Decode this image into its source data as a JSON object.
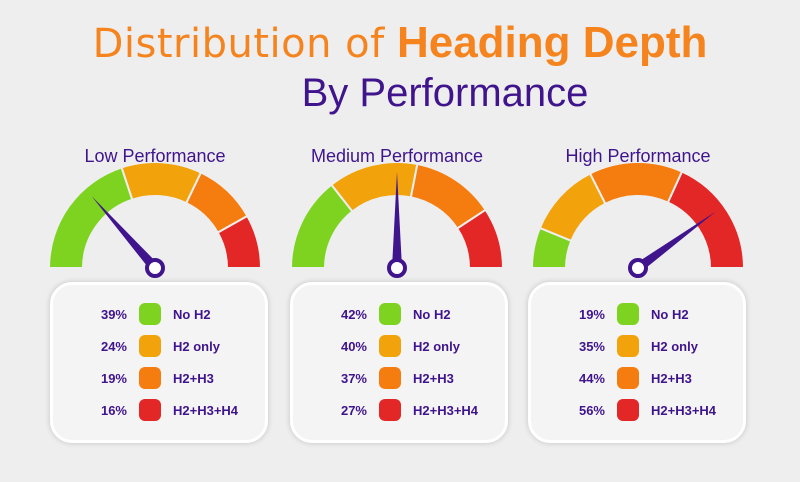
{
  "title": {
    "prefix": "Distribution of",
    "highlight": "Heading Depth",
    "subtitle": "By Performance"
  },
  "colors": {
    "green": "#7ed321",
    "yellow": "#f2a20a",
    "orange": "#f57c0f",
    "red": "#e32626",
    "needle": "#3f148c",
    "title_orange": "#f5841f",
    "title_purple": "#3f148c"
  },
  "chart_data": [
    {
      "type": "gauge",
      "title": "Low Performance",
      "categories": [
        "No H2",
        "H2 only",
        "H2+H3",
        "H2+H3+H4"
      ],
      "values": [
        39,
        24,
        19,
        16
      ],
      "labels": [
        "39%",
        "24%",
        "19%",
        "16%"
      ],
      "colors": [
        "#7ed321",
        "#f2a20a",
        "#f57c0f",
        "#e32626"
      ],
      "needle_fraction": 0.27
    },
    {
      "type": "gauge",
      "title": "Medium Performance",
      "categories": [
        "No H2",
        "H2 only",
        "H2+H3",
        "H2+H3+H4"
      ],
      "values": [
        42,
        40,
        37,
        27
      ],
      "labels": [
        "42%",
        "40%",
        "37%",
        "27%"
      ],
      "colors": [
        "#7ed321",
        "#f2a20a",
        "#f57c0f",
        "#e32626"
      ],
      "needle_fraction": 0.5
    },
    {
      "type": "gauge",
      "title": "High Performance",
      "categories": [
        "No H2",
        "H2 only",
        "H2+H3",
        "H2+H3+H4"
      ],
      "values": [
        19,
        35,
        44,
        56
      ],
      "labels": [
        "19%",
        "35%",
        "44%",
        "56%"
      ],
      "colors": [
        "#7ed321",
        "#f2a20a",
        "#f57c0f",
        "#e32626"
      ],
      "needle_fraction": 0.8
    }
  ]
}
